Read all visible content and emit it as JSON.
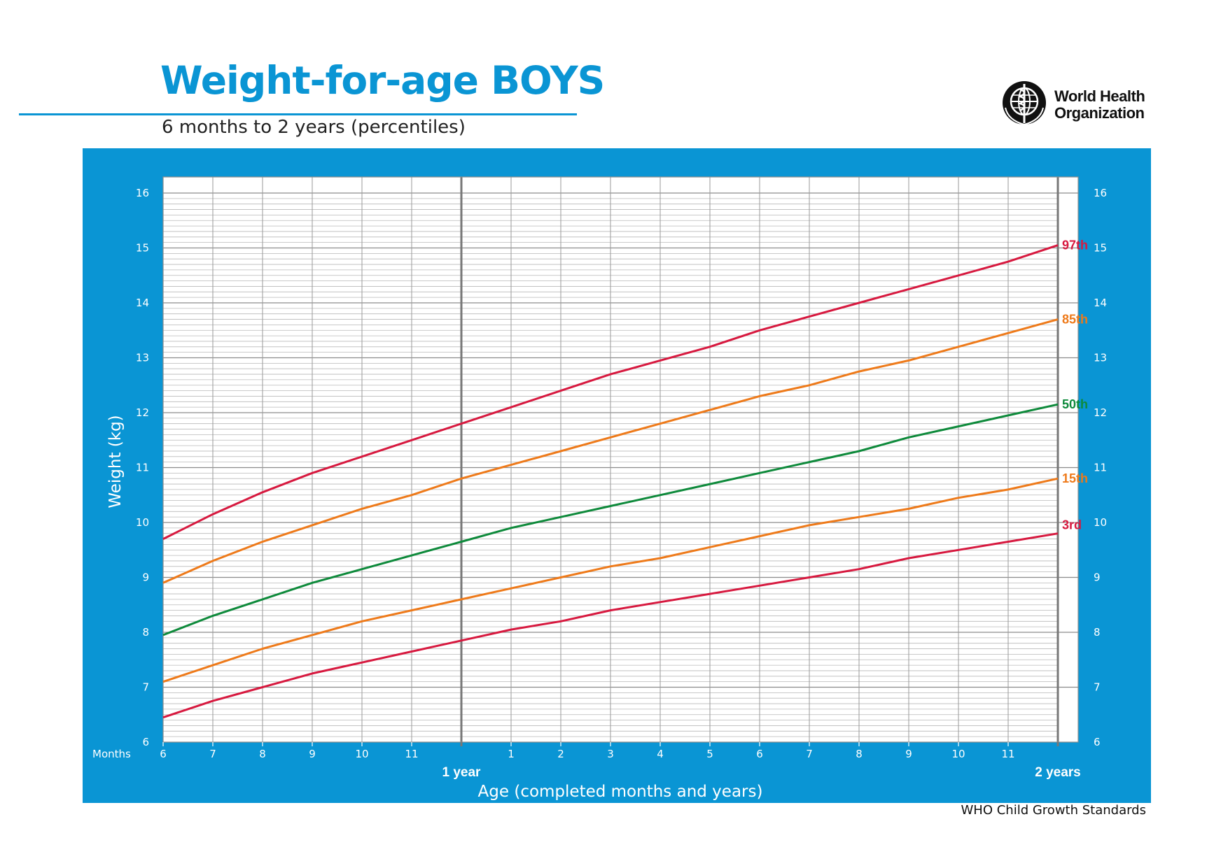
{
  "header": {
    "title": "Weight-for-age BOYS",
    "subtitle": "6 months to 2 years (percentiles)"
  },
  "logo": {
    "line1": "World Health",
    "line2": "Organization",
    "icon": "who-emblem-icon"
  },
  "footer": {
    "text": "WHO Child Growth Standards"
  },
  "colors": {
    "frame": "#0a95d4",
    "p97": "#d7193f",
    "p85": "#ee7a1a",
    "p50": "#0e8a3b",
    "p15": "#ee7a1a",
    "p3": "#d7193f"
  },
  "chart_data": {
    "type": "line",
    "xlabel": "Age (completed months and years)",
    "ylabel": "Weight (kg)",
    "x_unit_label": "Months",
    "xlim": [
      6,
      24
    ],
    "ylim": [
      6,
      16
    ],
    "x_tick_labels": [
      {
        "x": 6,
        "label": "6"
      },
      {
        "x": 7,
        "label": "7"
      },
      {
        "x": 8,
        "label": "8"
      },
      {
        "x": 9,
        "label": "9"
      },
      {
        "x": 10,
        "label": "10"
      },
      {
        "x": 11,
        "label": "11"
      },
      {
        "x": 13,
        "label": "1"
      },
      {
        "x": 14,
        "label": "2"
      },
      {
        "x": 15,
        "label": "3"
      },
      {
        "x": 16,
        "label": "4"
      },
      {
        "x": 17,
        "label": "5"
      },
      {
        "x": 18,
        "label": "6"
      },
      {
        "x": 19,
        "label": "7"
      },
      {
        "x": 20,
        "label": "8"
      },
      {
        "x": 21,
        "label": "9"
      },
      {
        "x": 22,
        "label": "10"
      },
      {
        "x": 23,
        "label": "11"
      }
    ],
    "year_markers": [
      {
        "x": 12,
        "label": "1 year"
      },
      {
        "x": 24,
        "label": "2 years"
      }
    ],
    "y_ticks": [
      6,
      7,
      8,
      9,
      10,
      11,
      12,
      13,
      14,
      15,
      16
    ],
    "grid": true,
    "x": [
      6,
      7,
      8,
      9,
      10,
      11,
      12,
      13,
      14,
      15,
      16,
      17,
      18,
      19,
      20,
      21,
      22,
      23,
      24
    ],
    "series": [
      {
        "name": "97th",
        "color": "#d7193f",
        "values": [
          9.7,
          10.15,
          10.55,
          10.9,
          11.2,
          11.5,
          11.8,
          12.1,
          12.4,
          12.7,
          12.95,
          13.2,
          13.5,
          13.75,
          14.0,
          14.25,
          14.5,
          14.75,
          15.05
        ]
      },
      {
        "name": "85th",
        "color": "#ee7a1a",
        "values": [
          8.9,
          9.3,
          9.65,
          9.95,
          10.25,
          10.5,
          10.8,
          11.05,
          11.3,
          11.55,
          11.8,
          12.05,
          12.3,
          12.5,
          12.75,
          12.95,
          13.2,
          13.45,
          13.7
        ]
      },
      {
        "name": "50th",
        "color": "#0e8a3b",
        "values": [
          7.95,
          8.3,
          8.6,
          8.9,
          9.15,
          9.4,
          9.65,
          9.9,
          10.1,
          10.3,
          10.5,
          10.7,
          10.9,
          11.1,
          11.3,
          11.55,
          11.75,
          11.95,
          12.15
        ]
      },
      {
        "name": "15th",
        "color": "#ee7a1a",
        "values": [
          7.1,
          7.4,
          7.7,
          7.95,
          8.2,
          8.4,
          8.6,
          8.8,
          9.0,
          9.2,
          9.35,
          9.55,
          9.75,
          9.95,
          10.1,
          10.25,
          10.45,
          10.6,
          10.8
        ]
      },
      {
        "name": "3rd",
        "color": "#d7193f",
        "values": [
          6.45,
          6.75,
          7.0,
          7.25,
          7.45,
          7.65,
          7.85,
          8.05,
          8.2,
          8.4,
          8.55,
          8.7,
          8.85,
          9.0,
          9.15,
          9.35,
          9.5,
          9.65,
          9.8
        ]
      }
    ]
  }
}
